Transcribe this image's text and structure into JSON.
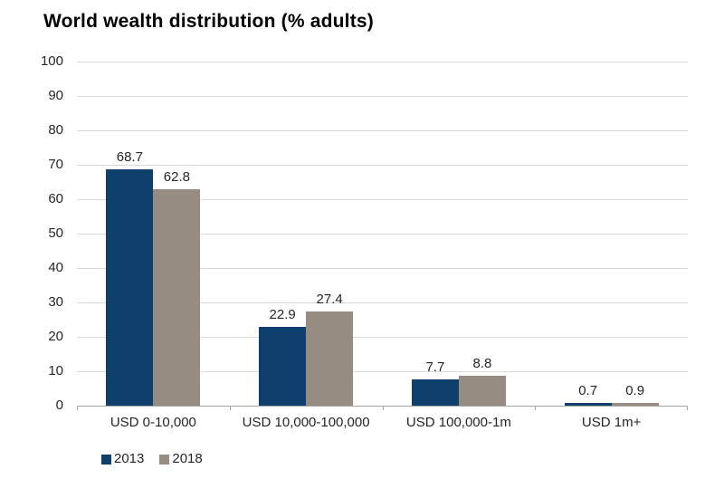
{
  "title": "World wealth distribution (% adults)",
  "colors": {
    "series_2013": "#0e3f6d",
    "series_2018": "#968c81",
    "gridline": "#d9d9d9",
    "axis": "#a6a6a6",
    "label_text": "#262626",
    "title_text": "#000000",
    "background": "#ffffff"
  },
  "legend": {
    "items": [
      {
        "label": "2013",
        "color": "#0e3f6d"
      },
      {
        "label": "2018",
        "color": "#968c81"
      }
    ]
  },
  "chart_data": {
    "type": "bar",
    "title": "World wealth distribution (% adults)",
    "categories": [
      "USD 0-10,000",
      "USD 10,000-100,000",
      "USD 100,000-1m",
      "USD 1m+"
    ],
    "series": [
      {
        "name": "2013",
        "color": "#0e3f6d",
        "values": [
          68.7,
          22.9,
          7.7,
          0.7
        ]
      },
      {
        "name": "2018",
        "color": "#968c81",
        "values": [
          62.8,
          27.4,
          8.8,
          0.9
        ]
      }
    ],
    "xlabel": "",
    "ylabel": "",
    "ylim": [
      0,
      100
    ],
    "ytick_interval": 10,
    "yticks": [
      0,
      10,
      20,
      30,
      40,
      50,
      60,
      70,
      80,
      90,
      100
    ],
    "grid": true,
    "value_labels": true,
    "value_label_format": "0.0",
    "legend_position": "bottom-left"
  }
}
